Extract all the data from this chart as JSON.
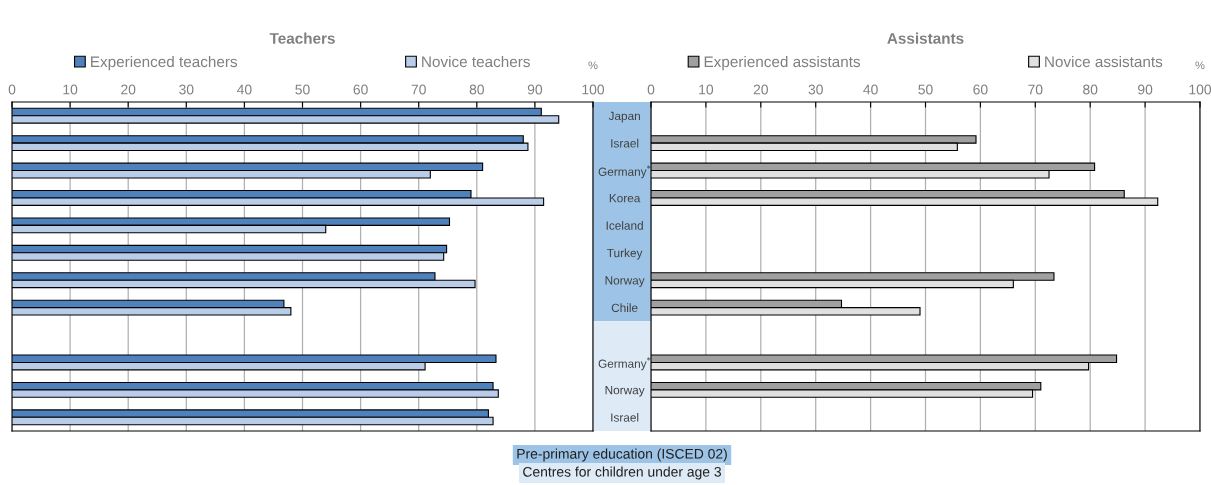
{
  "chart_data": [
    {
      "type": "bar",
      "orientation": "horizontal",
      "title": "Teachers",
      "xlabel": "%",
      "categories": [
        null,
        null,
        null,
        null,
        null,
        null,
        null,
        null,
        null,
        null,
        null,
        null
      ],
      "series": [
        {
          "name": "Experienced teachers",
          "color": "#4f81bd",
          "values": [
            91.1,
            88.0,
            81.0,
            79.0,
            75.3,
            74.8,
            72.8,
            46.8,
            null,
            83.3,
            82.8,
            82.0
          ]
        },
        {
          "name": "Novice teachers",
          "color": "#b9cde9",
          "values": [
            94.1,
            88.8,
            72.0,
            91.5,
            54.0,
            74.3,
            79.7,
            48.0,
            null,
            71.1,
            83.7,
            82.8
          ]
        }
      ],
      "xlim": [
        0,
        100
      ],
      "xticks": [
        0,
        10,
        20,
        30,
        40,
        50,
        60,
        70,
        80,
        90,
        100
      ],
      "grid": "x",
      "legend": "top"
    },
    {
      "type": "bar",
      "orientation": "horizontal",
      "title": "Assistants",
      "xlabel": "%",
      "categories": [
        "Japan",
        "Israel",
        "Germany$^{*}$",
        "Korea",
        "Iceland",
        "Turkey",
        "Norway",
        "Chile",
        null,
        "Germany$^{*}$",
        "Norway",
        "Israel"
      ],
      "series": [
        {
          "name": "Experienced assistants",
          "color": "#a0a0a0",
          "values": [
            null,
            59.2,
            80.8,
            86.2,
            null,
            null,
            73.4,
            34.7,
            null,
            84.8,
            71.0,
            null
          ]
        },
        {
          "name": "Novice assistants",
          "color": "#e0e0e0",
          "values": [
            null,
            55.8,
            72.5,
            92.3,
            null,
            null,
            66.0,
            49.0,
            null,
            79.7,
            69.5,
            null
          ]
        }
      ],
      "xlim": [
        0,
        100
      ],
      "xticks": [
        0,
        10,
        20,
        30,
        40,
        50,
        60,
        70,
        80,
        90,
        100
      ],
      "grid": "x",
      "legend": "top",
      "annotations": [
        "Pre-primary education (ISCED 02)",
        "Centres for children under age 3"
      ]
    }
  ]
}
